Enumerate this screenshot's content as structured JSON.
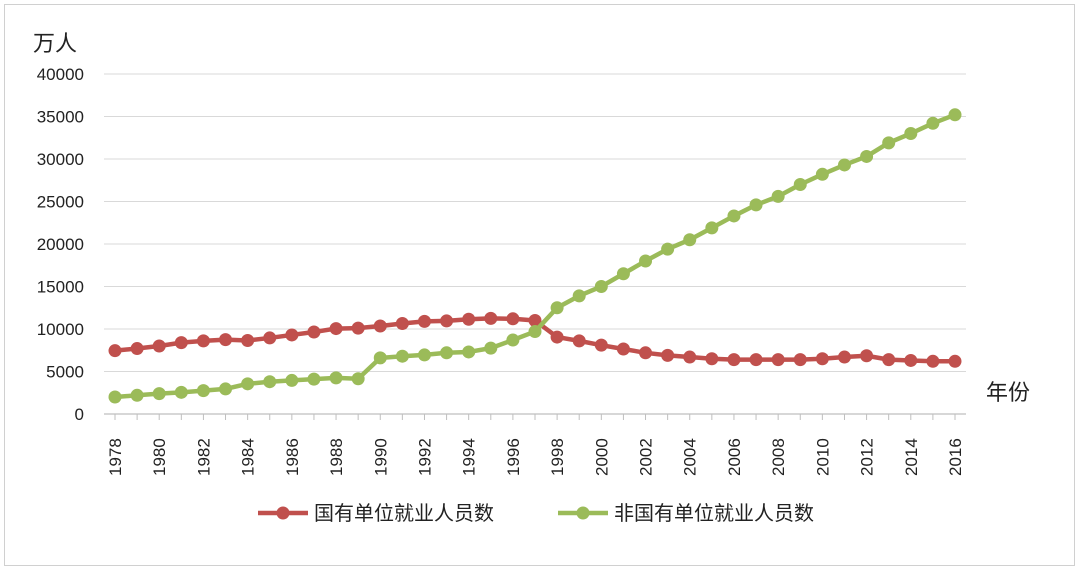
{
  "chart_data": {
    "type": "line",
    "ylabel": "万人",
    "xlabel": "年份",
    "ylim": [
      0,
      40000
    ],
    "yticks": [
      "0",
      "5000",
      "10000",
      "15000",
      "20000",
      "25000",
      "30000",
      "35000",
      "40000"
    ],
    "x": [
      1978,
      1979,
      1980,
      1981,
      1982,
      1983,
      1984,
      1985,
      1986,
      1987,
      1988,
      1989,
      1990,
      1991,
      1992,
      1993,
      1994,
      1995,
      1996,
      1997,
      1998,
      1999,
      2000,
      2001,
      2002,
      2003,
      2004,
      2005,
      2006,
      2007,
      2008,
      2009,
      2010,
      2011,
      2012,
      2013,
      2014,
      2015,
      2016
    ],
    "xtick_labels": [
      "1978",
      "1980",
      "1982",
      "1984",
      "1986",
      "1988",
      "1990",
      "1992",
      "1994",
      "1996",
      "1998",
      "2000",
      "2002",
      "2004",
      "2006",
      "2008",
      "2010",
      "2012",
      "2014",
      "2016"
    ],
    "grid": true,
    "legend_position": "bottom",
    "series": [
      {
        "name": "国有单位就业人员数",
        "color": "#c0504d",
        "values": [
          7450,
          7700,
          8000,
          8400,
          8600,
          8750,
          8650,
          8950,
          9300,
          9650,
          10050,
          10100,
          10350,
          10650,
          10900,
          10950,
          11150,
          11250,
          11200,
          11000,
          9050,
          8600,
          8100,
          7650,
          7200,
          6900,
          6700,
          6500,
          6400,
          6400,
          6400,
          6400,
          6500,
          6700,
          6850,
          6400,
          6300,
          6200,
          6200
        ]
      },
      {
        "name": "非国有单位就业人员数",
        "color": "#9bbb59",
        "values": [
          2000,
          2200,
          2400,
          2550,
          2750,
          2950,
          3550,
          3800,
          3950,
          4100,
          4250,
          4150,
          6600,
          6800,
          6950,
          7200,
          7300,
          7750,
          8700,
          9700,
          12500,
          13900,
          15000,
          16500,
          18000,
          19400,
          20500,
          21900,
          23300,
          24600,
          25600,
          27000,
          28200,
          29300,
          30300,
          31900,
          33000,
          34200,
          35200
        ]
      }
    ]
  }
}
